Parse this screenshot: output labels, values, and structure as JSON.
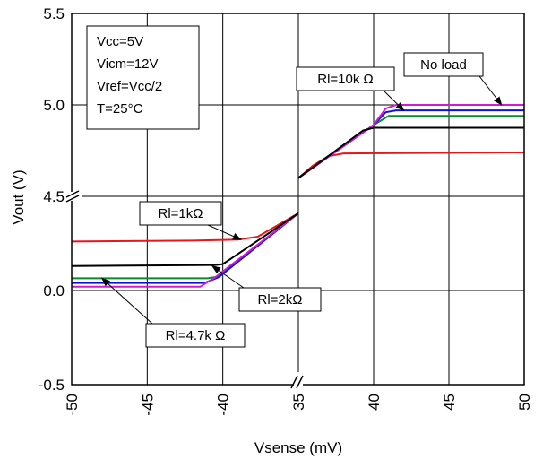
{
  "chart_data": {
    "type": "line",
    "xlabel": "Vsense (mV)",
    "ylabel": "Vout (V)",
    "x_tick_labels": [
      "-50",
      "-45",
      "-40",
      "35",
      "40",
      "45",
      "50"
    ],
    "y_tick_labels": [
      "-0.5",
      "0.0",
      "4.5",
      "5.0",
      "5.5"
    ],
    "x_segments": [
      {
        "xlim": [
          -50,
          -35
        ]
      },
      {
        "xlim": [
          35,
          50
        ]
      }
    ],
    "y_segments": [
      {
        "ylim": [
          -0.5,
          0.5
        ]
      },
      {
        "ylim": [
          4.5,
          5.5
        ]
      }
    ],
    "grid": true,
    "conditions_box": [
      "Vcc=5V",
      "Vicm=12V",
      "Vref=Vcc/2",
      "T=25°C"
    ],
    "series": [
      {
        "name": "Rl=1kΩ",
        "color": "#e8151b",
        "left": [
          [
            -50,
            0.26
          ],
          [
            -42,
            0.265
          ],
          [
            -39,
            0.27
          ],
          [
            -37.7,
            0.285
          ],
          [
            -35,
            0.41
          ]
        ],
        "right": [
          [
            35,
            4.6
          ],
          [
            36,
            4.67
          ],
          [
            37,
            4.72
          ],
          [
            38,
            4.735
          ],
          [
            50,
            4.74
          ]
        ]
      },
      {
        "name": "Rl=2kΩ",
        "color": "#0a8a2a",
        "left": [
          [
            -50,
            0.065
          ],
          [
            -41,
            0.065
          ],
          [
            -40.2,
            0.075
          ],
          [
            -35,
            0.41
          ]
        ],
        "right": [
          [
            35,
            4.6
          ],
          [
            40,
            4.89
          ],
          [
            41,
            4.94
          ],
          [
            50,
            4.94
          ]
        ]
      },
      {
        "name": "Rl=4.7kΩ",
        "color": "#1010d8",
        "left": [
          [
            -50,
            0.04
          ],
          [
            -41.2,
            0.04
          ],
          [
            -40.3,
            0.07
          ],
          [
            -35,
            0.41
          ]
        ],
        "right": [
          [
            35,
            4.6
          ],
          [
            40,
            4.89
          ],
          [
            40.8,
            4.96
          ],
          [
            41.5,
            4.97
          ],
          [
            50,
            4.97
          ]
        ]
      },
      {
        "name": "No load",
        "color": "#d21ad2",
        "left": [
          [
            -50,
            0.02
          ],
          [
            -41.5,
            0.02
          ],
          [
            -40.5,
            0.07
          ],
          [
            -35,
            0.41
          ]
        ],
        "right": [
          [
            35,
            4.6
          ],
          [
            40,
            4.89
          ],
          [
            40.8,
            4.98
          ],
          [
            41.5,
            5.0
          ],
          [
            50,
            5.0
          ]
        ]
      },
      {
        "name": "Rl=10kΩ",
        "color": "#000000",
        "left": [
          [
            -50,
            0.13
          ],
          [
            -40.5,
            0.135
          ],
          [
            -40,
            0.14
          ],
          [
            -35,
            0.41
          ]
        ],
        "right": [
          [
            35,
            4.6
          ],
          [
            39.3,
            4.86
          ],
          [
            40,
            4.875
          ],
          [
            50,
            4.875
          ]
        ]
      }
    ],
    "annotations": [
      {
        "label": "Rl=1kΩ",
        "arrow_to": [
          -38.8,
          0.27
        ]
      },
      {
        "label": "Rl=2kΩ",
        "arrow_to": [
          -40.7,
          0.13
        ]
      },
      {
        "label": "Rl=4.7k Ω",
        "arrow_to": [
          -48,
          0.065
        ]
      },
      {
        "label": "Rl=10k Ω",
        "arrow_to": [
          42,
          4.97
        ]
      },
      {
        "label": "No load",
        "arrow_to": [
          48.5,
          5.0
        ]
      }
    ]
  }
}
